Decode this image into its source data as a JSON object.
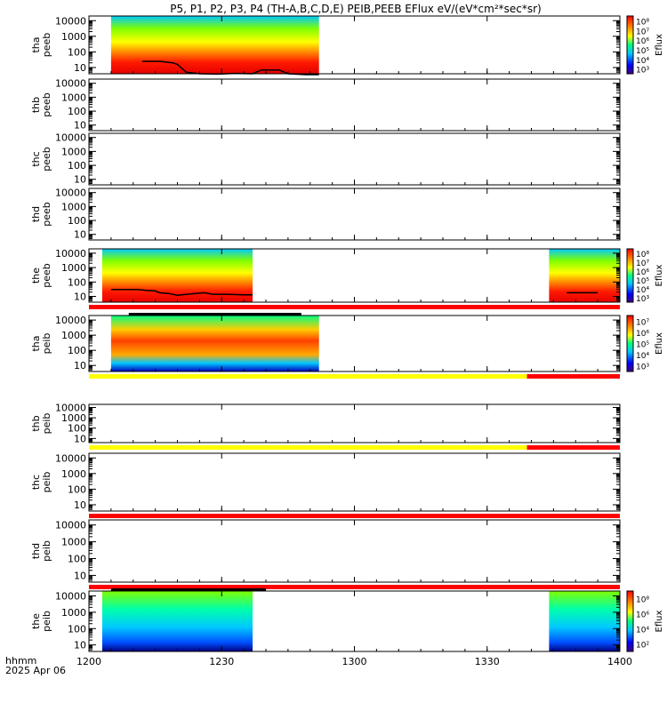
{
  "title": "P5, P1, P2, P3, P4 (TH-A,B,C,D,E) PEIB,PEEB EFlux eV/(eV*cm²*sec*sr)",
  "colors": {
    "red": "#ff0000",
    "yellow": "#ffff00",
    "black": "#000000"
  },
  "chart_data": {
    "type": "heatmap",
    "title": "P5, P1, P2, P3, P4 (TH-A,B,C,D,E) PEIB,PEEB EFlux eV/(eV*cm²*sec*sr)",
    "x_axis": {
      "label": "hhmm",
      "date": "2025 Apr 06",
      "ticks": [
        "1200",
        "1230",
        "1300",
        "1330",
        "1400"
      ],
      "range_min": [
        0,
        120
      ]
    },
    "y_axis": {
      "scale": "log",
      "unit": "eV",
      "tick_values": [
        10,
        100,
        1000,
        10000
      ],
      "tick_labels": [
        "10",
        "100",
        "1000",
        "10000"
      ]
    },
    "panels": [
      {
        "label": [
          "tha",
          "peeb"
        ],
        "has_data": true,
        "segments": [
          [
            5,
            52
          ]
        ],
        "colorbar": {
          "label": "Eflux",
          "ticks": [
            "10³",
            "10⁴",
            "10⁵",
            "10⁶",
            "10⁷",
            "10⁸"
          ]
        },
        "overlay_line": [
          [
            12,
            25
          ],
          [
            16,
            25
          ],
          [
            19,
            20
          ],
          [
            20,
            16
          ],
          [
            22,
            5
          ],
          [
            25,
            4
          ],
          [
            29,
            3.8
          ],
          [
            33,
            4.2
          ],
          [
            37,
            4
          ],
          [
            39,
            7
          ],
          [
            43,
            7
          ],
          [
            45,
            4
          ],
          [
            49,
            3.5
          ],
          [
            52,
            3.5
          ]
        ]
      },
      {
        "label": [
          "thb",
          "peeb"
        ],
        "has_data": false,
        "segments": []
      },
      {
        "label": [
          "thc",
          "peeb"
        ],
        "has_data": false,
        "segments": []
      },
      {
        "label": [
          "thd",
          "peeb"
        ],
        "has_data": false,
        "segments": []
      },
      {
        "label": [
          "the",
          "peeb"
        ],
        "has_data": true,
        "segments": [
          [
            3,
            37
          ],
          [
            104,
            120
          ]
        ],
        "colorbar": {
          "label": "Eflux",
          "ticks": [
            "10³",
            "10⁴",
            "10⁵",
            "10⁶",
            "10⁷",
            "10⁸"
          ]
        },
        "overlay_line": [
          [
            5,
            30
          ],
          [
            11,
            30
          ],
          [
            13,
            26
          ],
          [
            15,
            24
          ],
          [
            16,
            18
          ],
          [
            18,
            16
          ],
          [
            20,
            12
          ],
          [
            23,
            15
          ],
          [
            26,
            18
          ],
          [
            28,
            14
          ],
          [
            31,
            14
          ],
          [
            35,
            13
          ],
          [
            37,
            13
          ]
        ],
        "overlay_line_2": [
          [
            108,
            18
          ],
          [
            115,
            18
          ]
        ],
        "status_bars": [
          {
            "y": "bottom",
            "from": 0,
            "to": 120,
            "color": "red"
          }
        ]
      },
      {
        "label": [
          "tha",
          "peib"
        ],
        "has_data": true,
        "segments": [
          [
            5,
            52
          ]
        ],
        "colorbar": {
          "label": "Eflux",
          "ticks": [
            "10³",
            "10⁴",
            "10⁵",
            "10⁶",
            "10⁷"
          ]
        },
        "status_bars": [
          {
            "y": "top",
            "from": 9,
            "to": 48,
            "color": "black"
          },
          {
            "y": "bottom",
            "from": 0,
            "to": 99,
            "color": "yellow"
          },
          {
            "y": "bottom",
            "from": 99,
            "to": 120,
            "color": "red"
          }
        ]
      },
      {
        "label": [
          "thb",
          "peib"
        ],
        "has_data": false,
        "segments": [],
        "status_bars": [
          {
            "y": "bottom",
            "from": 0,
            "to": 99,
            "color": "yellow"
          },
          {
            "y": "bottom",
            "from": 99,
            "to": 120,
            "color": "red"
          }
        ]
      },
      {
        "label": [
          "thc",
          "peib"
        ],
        "has_data": false,
        "segments": [],
        "status_bars": [
          {
            "y": "bottom",
            "from": 0,
            "to": 120,
            "color": "red"
          }
        ]
      },
      {
        "label": [
          "thd",
          "peib"
        ],
        "has_data": false,
        "segments": [],
        "status_bars": [
          {
            "y": "bottom",
            "from": 0,
            "to": 120,
            "color": "red"
          }
        ]
      },
      {
        "label": [
          "the",
          "peib"
        ],
        "has_data": true,
        "segments": [
          [
            3,
            37
          ],
          [
            104,
            120
          ]
        ],
        "colorbar": {
          "label": "Eflux",
          "ticks": [
            "10²",
            "10⁴",
            "10⁶",
            "10⁸"
          ]
        },
        "status_bars": [
          {
            "y": "top",
            "from": 5,
            "to": 40,
            "color": "black"
          }
        ]
      }
    ]
  }
}
